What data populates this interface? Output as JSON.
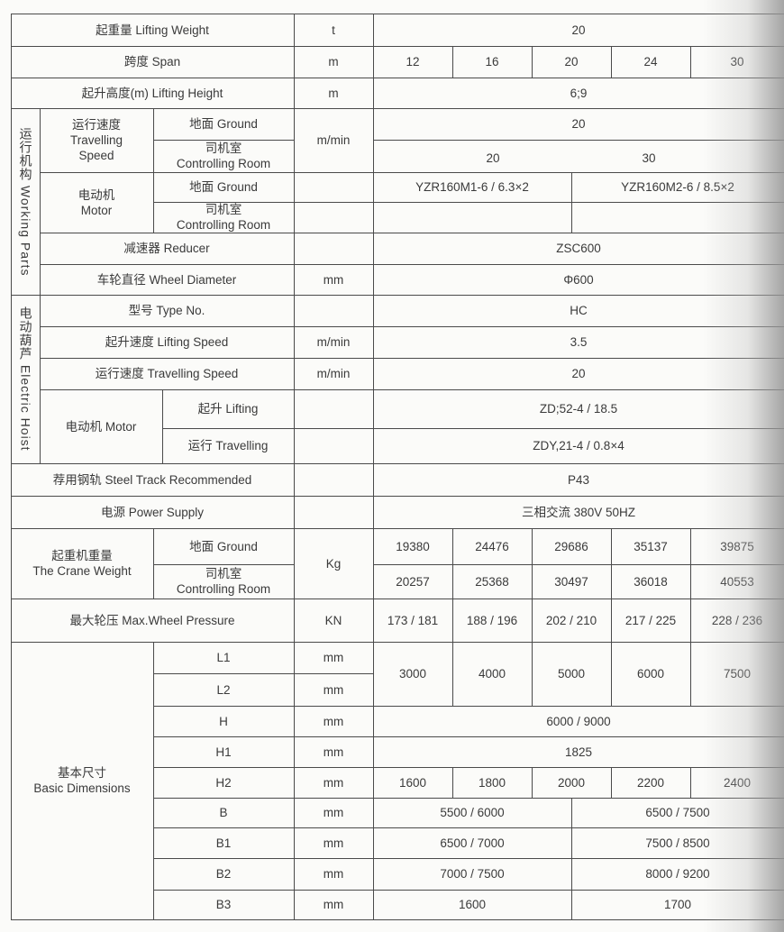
{
  "rows": {
    "lifting_weight": {
      "label": "起重量  Lifting Weight",
      "unit": "t",
      "value": "20"
    },
    "span": {
      "label": "跨度  Span",
      "unit": "m",
      "values": [
        "12",
        "16",
        "20",
        "24",
        "30"
      ]
    },
    "lifting_height": {
      "label": "起升高度(m)  Lifting Height",
      "unit": "m",
      "value": "6;9"
    }
  },
  "working_parts": {
    "group_label": "运行机构  Working Parts",
    "travelling_speed": {
      "label": "运行速度\nTravelling\nSpeed",
      "ground_label": "地面 Ground",
      "ctrl_label": "司机室\nControlling Room",
      "unit": "m/min",
      "ground_value": "20",
      "ctrl_values": [
        "20",
        "30"
      ]
    },
    "motor": {
      "label": "电动机\nMotor",
      "ground_label": "地面 Ground",
      "ctrl_label": "司机室\nControlling Room",
      "ground_values": [
        "YZR160M1-6 / 6.3×2",
        "YZR160M2-6 / 8.5×2"
      ]
    },
    "reducer": {
      "label": "减速器 Reducer",
      "value": "ZSC600"
    },
    "wheel_diameter": {
      "label": "车轮直径 Wheel Diameter",
      "unit": "mm",
      "value": "Φ600"
    }
  },
  "electric_hoist": {
    "group_label": "电动葫芦  Electric Hoist",
    "type_no": {
      "label": "型号 Type No.",
      "value": "HC"
    },
    "lifting_speed": {
      "label": "起升速度 Lifting Speed",
      "unit": "m/min",
      "value": "3.5"
    },
    "travelling_speed": {
      "label": "运行速度 Travelling Speed",
      "unit": "m/min",
      "value": "20"
    },
    "motor": {
      "label": "电动机 Motor",
      "lifting_label": "起升 Lifting",
      "lifting_value": "ZD;52-4 / 18.5",
      "travelling_label": "运行 Travelling",
      "travelling_value": "ZDY,21-4 / 0.8×4"
    }
  },
  "steel_track": {
    "label": "荐用钢轨 Steel Track Recommended",
    "value": "P43"
  },
  "power_supply": {
    "label": "电源 Power Supply",
    "value": "三相交流 380V  50HZ"
  },
  "crane_weight": {
    "label": "起重机重量\nThe Crane Weight",
    "ground_label": "地面 Ground",
    "ctrl_label": "司机室\nControlling Room",
    "unit": "Kg",
    "ground_values": [
      "19380",
      "24476",
      "29686",
      "35137",
      "39875"
    ],
    "ctrl_values": [
      "20257",
      "25368",
      "30497",
      "36018",
      "40553"
    ]
  },
  "wheel_pressure": {
    "label": "最大轮压  Max.Wheel Pressure",
    "unit": "KN",
    "values": [
      "173 / 181",
      "188 / 196",
      "202 / 210",
      "217 / 225",
      "228 / 236"
    ]
  },
  "dimensions": {
    "label": "基本尺寸\nBasic Dimensions",
    "unit": "mm",
    "L1": {
      "label": "L1"
    },
    "L2": {
      "label": "L2"
    },
    "L_values": [
      "3000",
      "4000",
      "5000",
      "6000",
      "7500"
    ],
    "H": {
      "label": "H",
      "value": "6000 / 9000"
    },
    "H1": {
      "label": "H1",
      "value": "1825"
    },
    "H2": {
      "label": "H2",
      "values": [
        "1600",
        "1800",
        "2000",
        "2200",
        "2400"
      ]
    },
    "B": {
      "label": "B",
      "values": [
        "5500 / 6000",
        "6500 / 7500"
      ]
    },
    "B1": {
      "label": "B1",
      "values": [
        "6500 / 7000",
        "7500 / 8500"
      ]
    },
    "B2": {
      "label": "B2",
      "values": [
        "7000 / 7500",
        "8000 / 9200"
      ]
    },
    "B3": {
      "label": "B3",
      "values": [
        "1600",
        "1700"
      ]
    }
  }
}
